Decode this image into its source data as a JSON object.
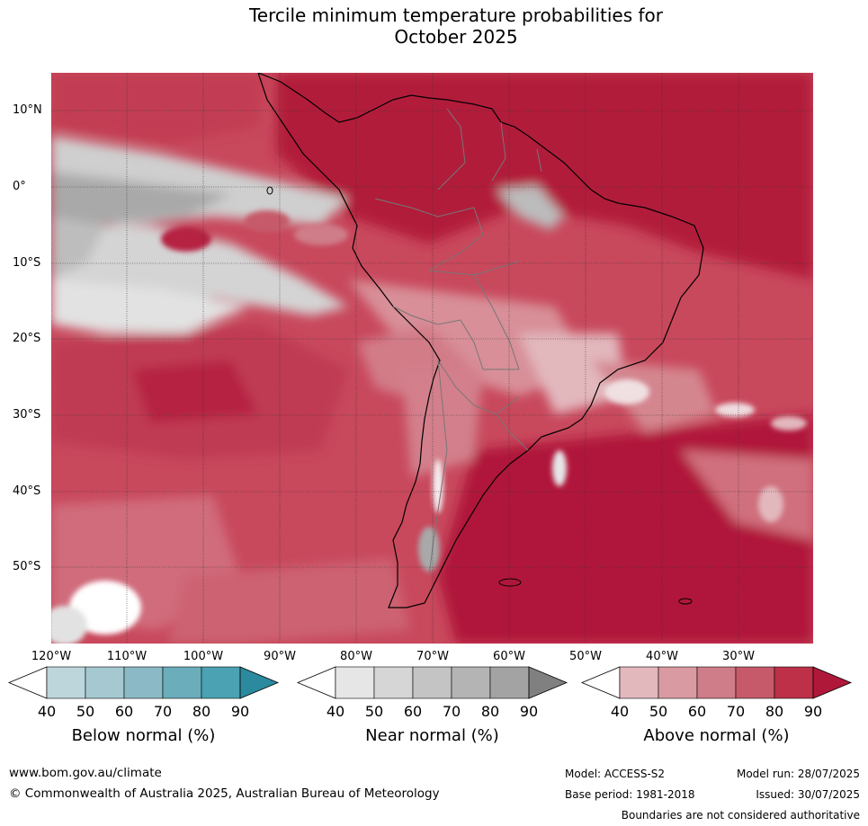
{
  "title_line1": "Tercile minimum temperature probabilities for",
  "title_line2": "October 2025",
  "lat_labels": [
    "10°N",
    "0°",
    "10°S",
    "20°S",
    "30°S",
    "40°S",
    "50°S"
  ],
  "lon_labels": [
    "120°W",
    "110°W",
    "100°W",
    "90°W",
    "80°W",
    "70°W",
    "60°W",
    "50°W",
    "40°W",
    "30°W"
  ],
  "legends": [
    {
      "title": "Below normal (%)",
      "ticks": [
        "40",
        "50",
        "60",
        "70",
        "80",
        "90"
      ],
      "colors": [
        "#ffffff",
        "#bcd6dc",
        "#a6c9d1",
        "#8bbac6",
        "#6badbb",
        "#4ba2b2",
        "#2b8a9e"
      ]
    },
    {
      "title": "Near normal (%)",
      "ticks": [
        "40",
        "50",
        "60",
        "70",
        "80",
        "90"
      ],
      "colors": [
        "#ffffff",
        "#e6e6e6",
        "#d6d6d6",
        "#c4c4c4",
        "#b4b4b4",
        "#a3a3a3",
        "#808080"
      ]
    },
    {
      "title": "Above normal (%)",
      "ticks": [
        "40",
        "50",
        "60",
        "70",
        "80",
        "90"
      ],
      "colors": [
        "#ffffff",
        "#e2b8bd",
        "#d99aa2",
        "#cf7d88",
        "#c65a6a",
        "#bd3048",
        "#b0183a"
      ]
    }
  ],
  "footer": {
    "website": "www.bom.gov.au/climate",
    "copyright": "© Commonwealth of Australia 2025, Australian Bureau of Meteorology",
    "model": "Model: ACCESS-S2",
    "base_period": "Base period: 1981-2018",
    "model_run": "Model run: 28/07/2025",
    "issued": "Issued: 30/07/2025",
    "disclaimer": "Boundaries are not considered authoritative"
  }
}
